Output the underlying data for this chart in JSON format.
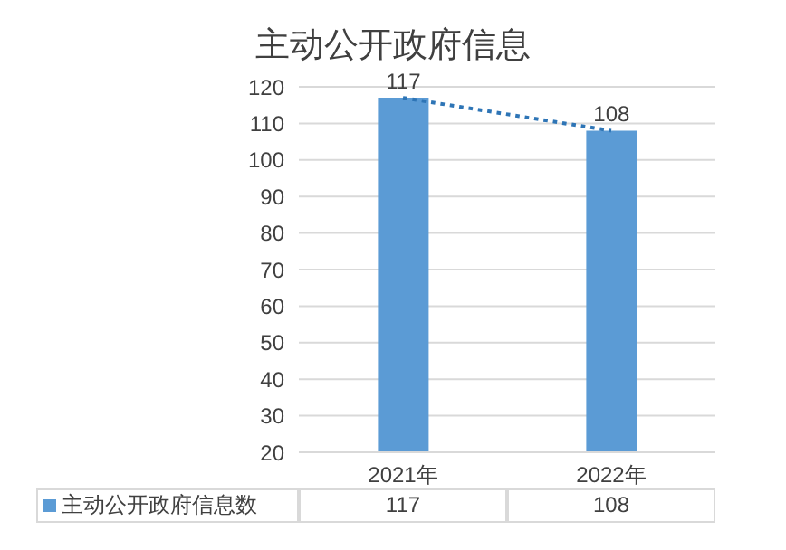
{
  "chart_data": {
    "type": "bar",
    "title": "主动公开政府信息",
    "categories": [
      "2021年",
      "2022年"
    ],
    "series": [
      {
        "name": "主动公开政府信息数",
        "color": "#5b9bd5",
        "values": [
          117,
          108
        ]
      },
      {
        "type": "line",
        "color": "#2e75b6",
        "values": [
          117,
          108
        ],
        "line_style": "dotted"
      }
    ],
    "ylim": [
      20,
      120
    ],
    "yticks": [
      20,
      30,
      40,
      50,
      60,
      70,
      80,
      90,
      100,
      110,
      120
    ],
    "grid": "y",
    "data_labels": true,
    "legend": "bottom"
  }
}
